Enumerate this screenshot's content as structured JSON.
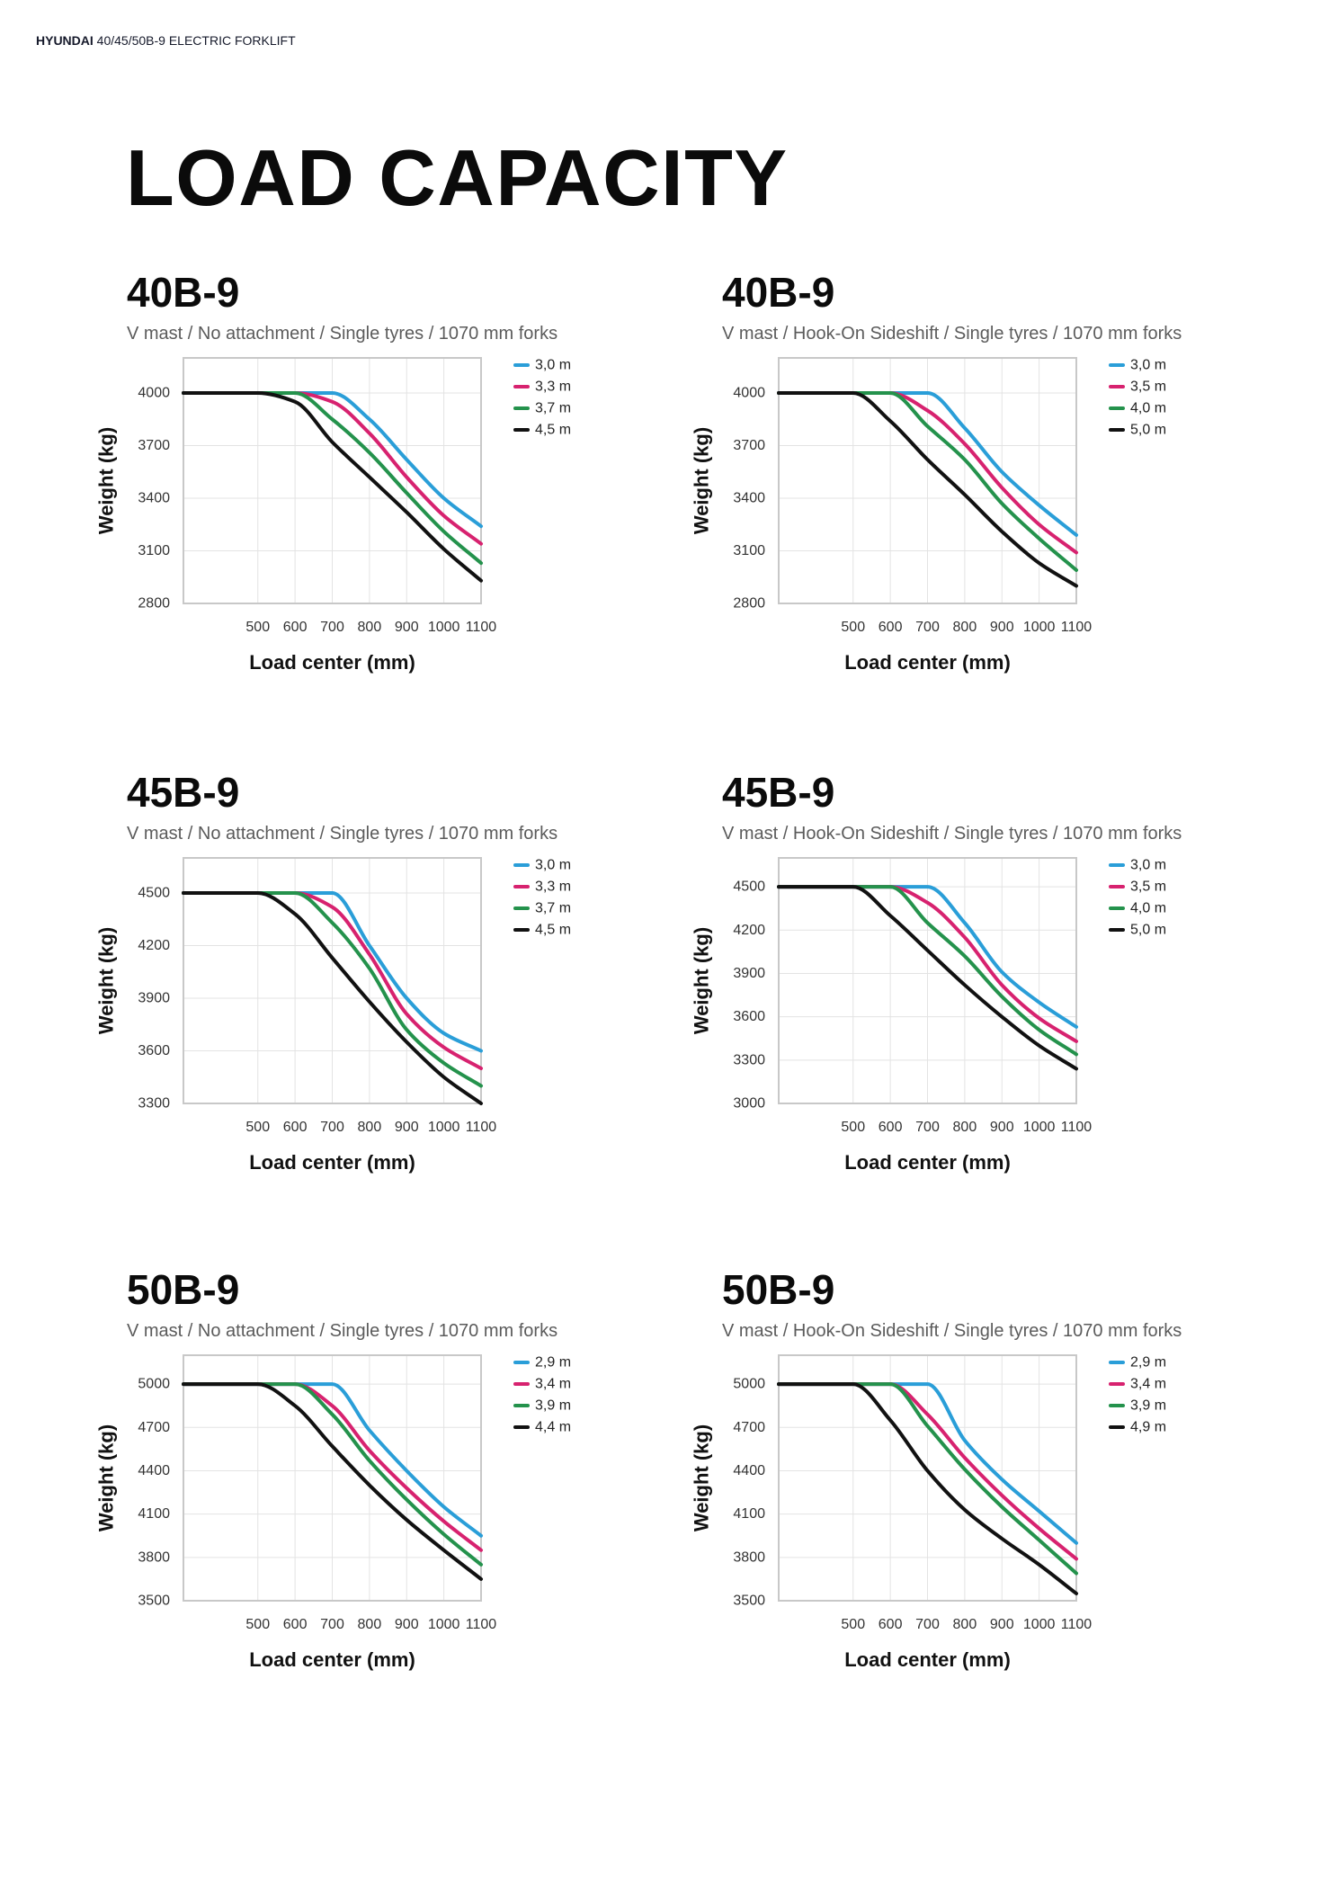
{
  "header": {
    "brand": "HYUNDAI",
    "subject": "40/45/50B-9 ELECTRIC FORKLIFT"
  },
  "page_title": "LOAD CAPACITY",
  "chart_data": [
    {
      "type": "line",
      "title": "40B-9",
      "subtitle": "V mast / No attachment / Single tyres / 1070 mm forks",
      "xlabel": "Load center (mm)",
      "ylabel": "Weight (kg)",
      "xlim": [
        300,
        1100
      ],
      "ylim": [
        2800,
        4200
      ],
      "x_ticks": [
        500,
        600,
        700,
        800,
        900,
        1000,
        1100
      ],
      "y_ticks": [
        2800,
        3100,
        3400,
        3700,
        4000
      ],
      "grid": true,
      "legend": "top-right outside",
      "x": [
        300,
        500,
        600,
        700,
        800,
        900,
        1000,
        1100
      ],
      "series": [
        {
          "name": "3,0 m",
          "color": "#2a9ed8",
          "y": [
            4000,
            4000,
            4000,
            4000,
            3850,
            3620,
            3400,
            3240
          ]
        },
        {
          "name": "3,3 m",
          "color": "#d7226f",
          "y": [
            4000,
            4000,
            4000,
            3950,
            3770,
            3520,
            3300,
            3140
          ]
        },
        {
          "name": "3,7 m",
          "color": "#24924c",
          "y": [
            4000,
            4000,
            4000,
            3850,
            3660,
            3430,
            3210,
            3030
          ]
        },
        {
          "name": "4,5 m",
          "color": "#111111",
          "y": [
            4000,
            4000,
            3950,
            3720,
            3520,
            3320,
            3110,
            2930
          ]
        }
      ]
    },
    {
      "type": "line",
      "title": "40B-9",
      "subtitle": "V mast / Hook-On Sideshift / Single tyres / 1070 mm forks",
      "xlabel": "Load center (mm)",
      "ylabel": "Weight (kg)",
      "xlim": [
        300,
        1100
      ],
      "ylim": [
        2800,
        4200
      ],
      "x_ticks": [
        500,
        600,
        700,
        800,
        900,
        1000,
        1100
      ],
      "y_ticks": [
        2800,
        3100,
        3400,
        3700,
        4000
      ],
      "grid": true,
      "legend": "top-right outside",
      "x": [
        300,
        500,
        600,
        700,
        800,
        900,
        1000,
        1100
      ],
      "series": [
        {
          "name": "3,0 m",
          "color": "#2a9ed8",
          "y": [
            4000,
            4000,
            4000,
            4000,
            3800,
            3550,
            3360,
            3190
          ]
        },
        {
          "name": "3,5 m",
          "color": "#d7226f",
          "y": [
            4000,
            4000,
            4000,
            3900,
            3710,
            3460,
            3250,
            3090
          ]
        },
        {
          "name": "4,0 m",
          "color": "#24924c",
          "y": [
            4000,
            4000,
            4000,
            3810,
            3620,
            3370,
            3170,
            2990
          ]
        },
        {
          "name": "5,0 m",
          "color": "#111111",
          "y": [
            4000,
            4000,
            3840,
            3620,
            3420,
            3210,
            3030,
            2900
          ]
        }
      ]
    },
    {
      "type": "line",
      "title": "45B-9",
      "subtitle": "V mast / No attachment / Single tyres / 1070 mm forks",
      "xlabel": "Load center (mm)",
      "ylabel": "Weight (kg)",
      "xlim": [
        300,
        1100
      ],
      "ylim": [
        3300,
        4700
      ],
      "x_ticks": [
        500,
        600,
        700,
        800,
        900,
        1000,
        1100
      ],
      "y_ticks": [
        3300,
        3600,
        3900,
        4200,
        4500
      ],
      "grid": true,
      "legend": "top-right outside",
      "x": [
        300,
        500,
        600,
        700,
        800,
        900,
        1000,
        1100
      ],
      "series": [
        {
          "name": "3,0 m",
          "color": "#2a9ed8",
          "y": [
            4500,
            4500,
            4500,
            4500,
            4200,
            3900,
            3700,
            3600
          ]
        },
        {
          "name": "3,3 m",
          "color": "#d7226f",
          "y": [
            4500,
            4500,
            4500,
            4420,
            4150,
            3810,
            3620,
            3500
          ]
        },
        {
          "name": "3,7 m",
          "color": "#24924c",
          "y": [
            4500,
            4500,
            4500,
            4330,
            4070,
            3720,
            3530,
            3400
          ]
        },
        {
          "name": "4,5 m",
          "color": "#111111",
          "y": [
            4500,
            4500,
            4380,
            4130,
            3880,
            3650,
            3450,
            3300
          ]
        }
      ]
    },
    {
      "type": "line",
      "title": "45B-9",
      "subtitle": "V mast / Hook-On Sideshift / Single tyres / 1070 mm forks",
      "xlabel": "Load center (mm)",
      "ylabel": "Weight (kg)",
      "xlim": [
        300,
        1100
      ],
      "ylim": [
        3000,
        4700
      ],
      "x_ticks": [
        500,
        600,
        700,
        800,
        900,
        1000,
        1100
      ],
      "y_ticks": [
        3000,
        3300,
        3600,
        3900,
        4200,
        4500
      ],
      "grid": true,
      "legend": "top-right outside",
      "x": [
        300,
        500,
        600,
        700,
        800,
        900,
        1000,
        1100
      ],
      "series": [
        {
          "name": "3,0 m",
          "color": "#2a9ed8",
          "y": [
            4500,
            4500,
            4500,
            4500,
            4250,
            3910,
            3700,
            3530
          ]
        },
        {
          "name": "3,5 m",
          "color": "#d7226f",
          "y": [
            4500,
            4500,
            4500,
            4390,
            4150,
            3820,
            3590,
            3430
          ]
        },
        {
          "name": "4,0 m",
          "color": "#24924c",
          "y": [
            4500,
            4500,
            4500,
            4250,
            4020,
            3740,
            3510,
            3340
          ]
        },
        {
          "name": "5,0 m",
          "color": "#111111",
          "y": [
            4500,
            4500,
            4300,
            4060,
            3820,
            3600,
            3400,
            3240
          ]
        }
      ]
    },
    {
      "type": "line",
      "title": "50B-9",
      "subtitle": "V mast / No attachment / Single tyres / 1070 mm forks",
      "xlabel": "Load center (mm)",
      "ylabel": "Weight (kg)",
      "xlim": [
        300,
        1100
      ],
      "ylim": [
        3500,
        5200
      ],
      "x_ticks": [
        500,
        600,
        700,
        800,
        900,
        1000,
        1100
      ],
      "y_ticks": [
        3500,
        3800,
        4100,
        4400,
        4700,
        5000
      ],
      "grid": true,
      "legend": "top-right outside",
      "x": [
        300,
        500,
        600,
        700,
        800,
        900,
        1000,
        1100
      ],
      "series": [
        {
          "name": "2,9 m",
          "color": "#2a9ed8",
          "y": [
            5000,
            5000,
            5000,
            5000,
            4680,
            4400,
            4150,
            3950
          ]
        },
        {
          "name": "3,4 m",
          "color": "#d7226f",
          "y": [
            5000,
            5000,
            5000,
            4850,
            4540,
            4280,
            4050,
            3850
          ]
        },
        {
          "name": "3,9 m",
          "color": "#24924c",
          "y": [
            5000,
            5000,
            5000,
            4790,
            4470,
            4200,
            3960,
            3750
          ]
        },
        {
          "name": "4,4 m",
          "color": "#111111",
          "y": [
            5000,
            5000,
            4850,
            4570,
            4300,
            4060,
            3850,
            3650
          ]
        }
      ]
    },
    {
      "type": "line",
      "title": "50B-9",
      "subtitle": "V mast / Hook-On Sideshift / Single tyres / 1070 mm forks",
      "xlabel": "Load center (mm)",
      "ylabel": "Weight (kg)",
      "xlim": [
        300,
        1100
      ],
      "ylim": [
        3500,
        5200
      ],
      "x_ticks": [
        500,
        600,
        700,
        800,
        900,
        1000,
        1100
      ],
      "y_ticks": [
        3500,
        3800,
        4100,
        4400,
        4700,
        5000
      ],
      "grid": true,
      "legend": "top-right outside",
      "x": [
        300,
        500,
        600,
        700,
        800,
        900,
        1000,
        1100
      ],
      "series": [
        {
          "name": "2,9 m",
          "color": "#2a9ed8",
          "y": [
            5000,
            5000,
            5000,
            5000,
            4610,
            4340,
            4120,
            3900
          ]
        },
        {
          "name": "3,4 m",
          "color": "#d7226f",
          "y": [
            5000,
            5000,
            5000,
            4790,
            4490,
            4230,
            4000,
            3790
          ]
        },
        {
          "name": "3,9 m",
          "color": "#24924c",
          "y": [
            5000,
            5000,
            5000,
            4710,
            4410,
            4150,
            3920,
            3690
          ]
        },
        {
          "name": "4,9 m",
          "color": "#111111",
          "y": [
            5000,
            5000,
            4750,
            4400,
            4130,
            3930,
            3750,
            3550
          ]
        }
      ]
    }
  ]
}
